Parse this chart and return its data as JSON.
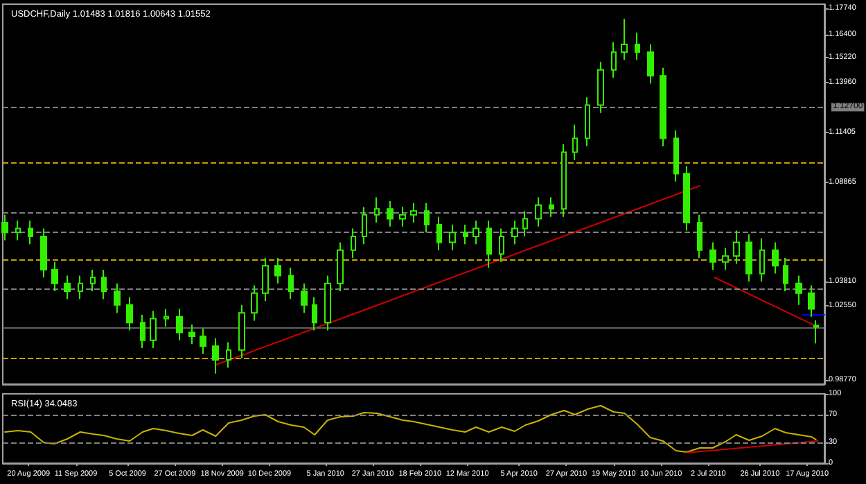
{
  "chart_data": [
    {
      "type": "candlestick",
      "title": "USDCHF,Daily 1.01483 1.01816 1.00643 1.01552",
      "color": "#33ee00",
      "tick_labels": "y",
      "x": [
        "2009-08-09",
        "2009-08-15",
        "2009-08-21",
        "2009-08-27",
        "2009-09-01",
        "2009-09-07",
        "2009-09-13",
        "2009-09-19",
        "2009-09-24",
        "2009-09-30",
        "2009-10-06",
        "2009-10-12",
        "2009-10-17",
        "2009-10-23",
        "2009-10-29",
        "2009-11-04",
        "2009-11-09",
        "2009-11-15",
        "2009-11-21",
        "2009-11-27",
        "2009-12-03",
        "2009-12-08",
        "2009-12-14",
        "2009-12-20",
        "2009-12-26",
        "2009-12-31",
        "2010-01-06",
        "2010-01-12",
        "2010-01-18",
        "2010-01-23",
        "2010-01-29",
        "2010-02-04",
        "2010-02-10",
        "2010-02-15",
        "2010-02-21",
        "2010-02-27",
        "2010-03-05",
        "2010-03-11",
        "2010-03-16",
        "2010-03-22",
        "2010-03-28",
        "2010-04-03",
        "2010-04-08",
        "2010-04-14",
        "2010-04-20",
        "2010-04-26",
        "2010-05-01",
        "2010-05-07",
        "2010-05-13",
        "2010-05-19",
        "2010-05-24",
        "2010-05-30",
        "2010-06-05",
        "2010-06-11",
        "2010-06-17",
        "2010-06-22",
        "2010-06-28",
        "2010-07-04",
        "2010-07-10",
        "2010-07-15",
        "2010-07-21",
        "2010-07-27",
        "2010-08-02",
        "2010-08-07",
        "2010-08-13",
        "2010-08-19",
        "2010-08-21"
      ],
      "ohlc": [
        [
          1.068,
          1.072,
          1.059,
          1.063
        ],
        [
          1.063,
          1.069,
          1.059,
          1.065
        ],
        [
          1.065,
          1.069,
          1.057,
          1.061
        ],
        [
          1.061,
          1.065,
          1.04,
          1.044
        ],
        [
          1.044,
          1.048,
          1.033,
          1.037
        ],
        [
          1.037,
          1.041,
          1.029,
          1.033
        ],
        [
          1.033,
          1.041,
          1.029,
          1.037
        ],
        [
          1.037,
          1.044,
          1.033,
          1.04
        ],
        [
          1.04,
          1.044,
          1.029,
          1.033
        ],
        [
          1.033,
          1.037,
          1.022,
          1.026
        ],
        [
          1.026,
          1.03,
          1.013,
          1.017
        ],
        [
          1.017,
          1.021,
          1.004,
          1.008
        ],
        [
          1.008,
          1.023,
          1.004,
          1.019
        ],
        [
          1.019,
          1.024,
          1.015,
          1.02
        ],
        [
          1.02,
          1.024,
          1.008,
          1.012
        ],
        [
          1.012,
          1.016,
          1.006,
          1.01
        ],
        [
          1.01,
          1.014,
          1.001,
          1.005
        ],
        [
          1.005,
          1.009,
          0.991,
          0.998
        ],
        [
          0.998,
          1.007,
          0.994,
          1.003
        ],
        [
          1.003,
          1.026,
          0.999,
          1.022
        ],
        [
          1.022,
          1.036,
          1.018,
          1.032
        ],
        [
          1.032,
          1.05,
          1.028,
          1.046
        ],
        [
          1.046,
          1.05,
          1.037,
          1.041
        ],
        [
          1.041,
          1.045,
          1.029,
          1.033
        ],
        [
          1.033,
          1.037,
          1.022,
          1.026
        ],
        [
          1.026,
          1.03,
          1.013,
          1.017
        ],
        [
          1.017,
          1.041,
          1.013,
          1.037
        ],
        [
          1.037,
          1.058,
          1.033,
          1.054
        ],
        [
          1.054,
          1.065,
          1.05,
          1.061
        ],
        [
          1.061,
          1.076,
          1.057,
          1.072
        ],
        [
          1.072,
          1.081,
          1.068,
          1.075
        ],
        [
          1.075,
          1.079,
          1.066,
          1.07
        ],
        [
          1.07,
          1.076,
          1.066,
          1.072
        ],
        [
          1.072,
          1.078,
          1.068,
          1.074
        ],
        [
          1.074,
          1.078,
          1.063,
          1.067
        ],
        [
          1.067,
          1.071,
          1.054,
          1.058
        ],
        [
          1.058,
          1.067,
          1.054,
          1.063
        ],
        [
          1.063,
          1.067,
          1.057,
          1.061
        ],
        [
          1.061,
          1.069,
          1.057,
          1.065
        ],
        [
          1.065,
          1.069,
          1.045,
          1.052
        ],
        [
          1.052,
          1.065,
          1.048,
          1.061
        ],
        [
          1.061,
          1.069,
          1.057,
          1.065
        ],
        [
          1.065,
          1.074,
          1.061,
          1.07
        ],
        [
          1.07,
          1.081,
          1.066,
          1.077
        ],
        [
          1.077,
          1.081,
          1.071,
          1.075
        ],
        [
          1.075,
          1.108,
          1.071,
          1.104
        ],
        [
          1.104,
          1.118,
          1.1,
          1.111
        ],
        [
          1.111,
          1.132,
          1.107,
          1.128
        ],
        [
          1.128,
          1.15,
          1.124,
          1.146
        ],
        [
          1.146,
          1.16,
          1.142,
          1.155
        ],
        [
          1.155,
          1.172,
          1.151,
          1.159
        ],
        [
          1.159,
          1.165,
          1.151,
          1.155
        ],
        [
          1.155,
          1.159,
          1.139,
          1.143
        ],
        [
          1.143,
          1.147,
          1.107,
          1.111
        ],
        [
          1.111,
          1.115,
          1.089,
          1.093
        ],
        [
          1.093,
          1.097,
          1.064,
          1.068
        ],
        [
          1.068,
          1.072,
          1.05,
          1.054
        ],
        [
          1.054,
          1.058,
          1.044,
          1.048
        ],
        [
          1.048,
          1.055,
          1.044,
          1.051
        ],
        [
          1.051,
          1.064,
          1.047,
          1.058
        ],
        [
          1.058,
          1.062,
          1.038,
          1.042
        ],
        [
          1.042,
          1.06,
          1.038,
          1.054
        ],
        [
          1.054,
          1.058,
          1.042,
          1.046
        ],
        [
          1.046,
          1.05,
          1.033,
          1.037
        ],
        [
          1.037,
          1.041,
          1.026,
          1.032
        ],
        [
          1.032,
          1.036,
          1.02,
          1.024
        ],
        [
          1.01483,
          1.01816,
          1.00643,
          1.01552
        ]
      ],
      "series": [
        {
          "type": "line",
          "color": "#cc0000",
          "x": [
            "2009-11-15",
            "2010-06-28"
          ],
          "values": [
            0.9954,
            1.0868
          ]
        },
        {
          "type": "line",
          "color": "#cc0000",
          "x": [
            "2010-07-05",
            "2010-08-21"
          ],
          "values": [
            1.04,
            1.0153
          ]
        },
        {
          "type": "line",
          "color": "#0000ff",
          "x": [
            "2010-08-15",
            "2010-08-25"
          ],
          "values": [
            1.021,
            1.021
          ]
        }
      ],
      "marker": "none",
      "xlim": [
        "2009-08-08",
        "2010-08-25"
      ],
      "ylim": [
        0.9856,
        1.1795
      ],
      "yticks": [
        {
          "value": 1.1774,
          "label": "1.17740"
        },
        {
          "value": 1.164,
          "label": "1.16400"
        },
        {
          "value": 1.1522,
          "label": "1.15220"
        },
        {
          "value": 1.1396,
          "label": "1.13960"
        },
        {
          "value": 1.11405,
          "label": "1.11405"
        },
        {
          "value": 1.08865,
          "label": "1.08865"
        },
        {
          "value": 1.0381,
          "label": "1.03810"
        },
        {
          "value": 1.0255,
          "label": "1.02550"
        },
        {
          "value": 0.9877,
          "label": "0.98770"
        }
      ],
      "ref_lines": [
        {
          "axis": "y",
          "value": 1.127,
          "label": "1.12700",
          "color": "#808080",
          "line_style": "dashed"
        },
        {
          "axis": "y",
          "value": 1.099,
          "color": "#c8a000",
          "line_style": "dashed"
        },
        {
          "axis": "y",
          "value": 1.0731,
          "color": "#808080",
          "line_style": "dashed"
        },
        {
          "axis": "y",
          "value": 1.0632,
          "color": "#808080",
          "line_style": "dashed"
        },
        {
          "axis": "y",
          "value": 1.049,
          "color": "#c8a000",
          "line_style": "dashed"
        },
        {
          "axis": "y",
          "value": 1.0342,
          "color": "#808080",
          "line_style": "dashed"
        },
        {
          "axis": "y",
          "value": 1.0145,
          "color": "#606060",
          "line_style": "solid"
        },
        {
          "axis": "y",
          "value": 0.9988,
          "color": "#c8a000",
          "line_style": "dashed"
        }
      ]
    },
    {
      "type": "line",
      "title": "RSI(14) 34.0483",
      "marker": "none",
      "x": [
        "2009-08-09",
        "2009-08-15",
        "2009-08-21",
        "2009-08-27",
        "2009-09-01",
        "2009-09-07",
        "2009-09-13",
        "2009-09-19",
        "2009-09-24",
        "2009-09-30",
        "2009-10-06",
        "2009-10-12",
        "2009-10-17",
        "2009-10-23",
        "2009-10-29",
        "2009-11-04",
        "2009-11-09",
        "2009-11-15",
        "2009-11-21",
        "2009-11-27",
        "2009-12-03",
        "2009-12-08",
        "2009-12-14",
        "2009-12-20",
        "2009-12-26",
        "2009-12-31",
        "2010-01-06",
        "2010-01-12",
        "2010-01-18",
        "2010-01-23",
        "2010-01-29",
        "2010-02-04",
        "2010-02-10",
        "2010-02-15",
        "2010-02-21",
        "2010-02-27",
        "2010-03-05",
        "2010-03-11",
        "2010-03-16",
        "2010-03-22",
        "2010-03-28",
        "2010-04-03",
        "2010-04-08",
        "2010-04-14",
        "2010-04-20",
        "2010-04-26",
        "2010-05-01",
        "2010-05-07",
        "2010-05-13",
        "2010-05-19",
        "2010-05-24",
        "2010-05-30",
        "2010-06-05",
        "2010-06-11",
        "2010-06-17",
        "2010-06-22",
        "2010-06-28",
        "2010-07-04",
        "2010-07-10",
        "2010-07-15",
        "2010-07-21",
        "2010-07-27",
        "2010-08-02",
        "2010-08-07",
        "2010-08-13",
        "2010-08-19",
        "2010-08-21"
      ],
      "series": [
        {
          "color": "#c8b400",
          "values": [
            45,
            47,
            45,
            30,
            28,
            35,
            45,
            42,
            40,
            35,
            32,
            45,
            50,
            47,
            43,
            40,
            48,
            39,
            58,
            62,
            68,
            70,
            60,
            55,
            52,
            41,
            62,
            67,
            68,
            73,
            72,
            67,
            62,
            60,
            56,
            52,
            48,
            45,
            52,
            45,
            52,
            46,
            55,
            61,
            70,
            76,
            70,
            78,
            83,
            74,
            72,
            56,
            37,
            32,
            18,
            16,
            22,
            22,
            31,
            41,
            33,
            39,
            50,
            44,
            41,
            38,
            34.0483
          ]
        },
        {
          "color": "#cc0000",
          "x": [
            "2010-06-22",
            "2010-08-22"
          ],
          "values": [
            15,
            32
          ]
        }
      ],
      "xlim": [
        "2009-08-08",
        "2010-08-25"
      ],
      "xticks": [
        {
          "value": "2009-08-20",
          "label": "20 Aug 2009"
        },
        {
          "value": "2009-09-11",
          "label": "11 Sep 2009"
        },
        {
          "value": "2009-10-05",
          "label": "5 Oct 2009"
        },
        {
          "value": "2009-10-27",
          "label": "27 Oct 2009"
        },
        {
          "value": "2009-11-18",
          "label": "18 Nov 2009"
        },
        {
          "value": "2009-12-10",
          "label": "10 Dec 2009"
        },
        {
          "value": "2010-01-05",
          "label": "5 Jan 2010"
        },
        {
          "value": "2010-01-27",
          "label": "27 Jan 2010"
        },
        {
          "value": "2010-02-18",
          "label": "18 Feb 2010"
        },
        {
          "value": "2010-03-12",
          "label": "12 Mar 2010"
        },
        {
          "value": "2010-04-05",
          "label": "5 Apr 2010"
        },
        {
          "value": "2010-04-27",
          "label": "27 Apr 2010"
        },
        {
          "value": "2010-05-19",
          "label": "19 May 2010"
        },
        {
          "value": "2010-06-10",
          "label": "10 Jun 2010"
        },
        {
          "value": "2010-07-02",
          "label": "2 Jul 2010"
        },
        {
          "value": "2010-07-26",
          "label": "26 Jul 2010"
        },
        {
          "value": "2010-08-17",
          "label": "17 Aug 2010"
        }
      ],
      "ylim": [
        0,
        100
      ],
      "yticks": [
        0,
        30,
        70,
        100
      ],
      "ref_lines": [
        {
          "axis": "y",
          "value": 30,
          "color": "#808080",
          "line_style": "dashed"
        },
        {
          "axis": "y",
          "value": 70,
          "color": "#808080",
          "line_style": "dashed"
        }
      ]
    }
  ]
}
